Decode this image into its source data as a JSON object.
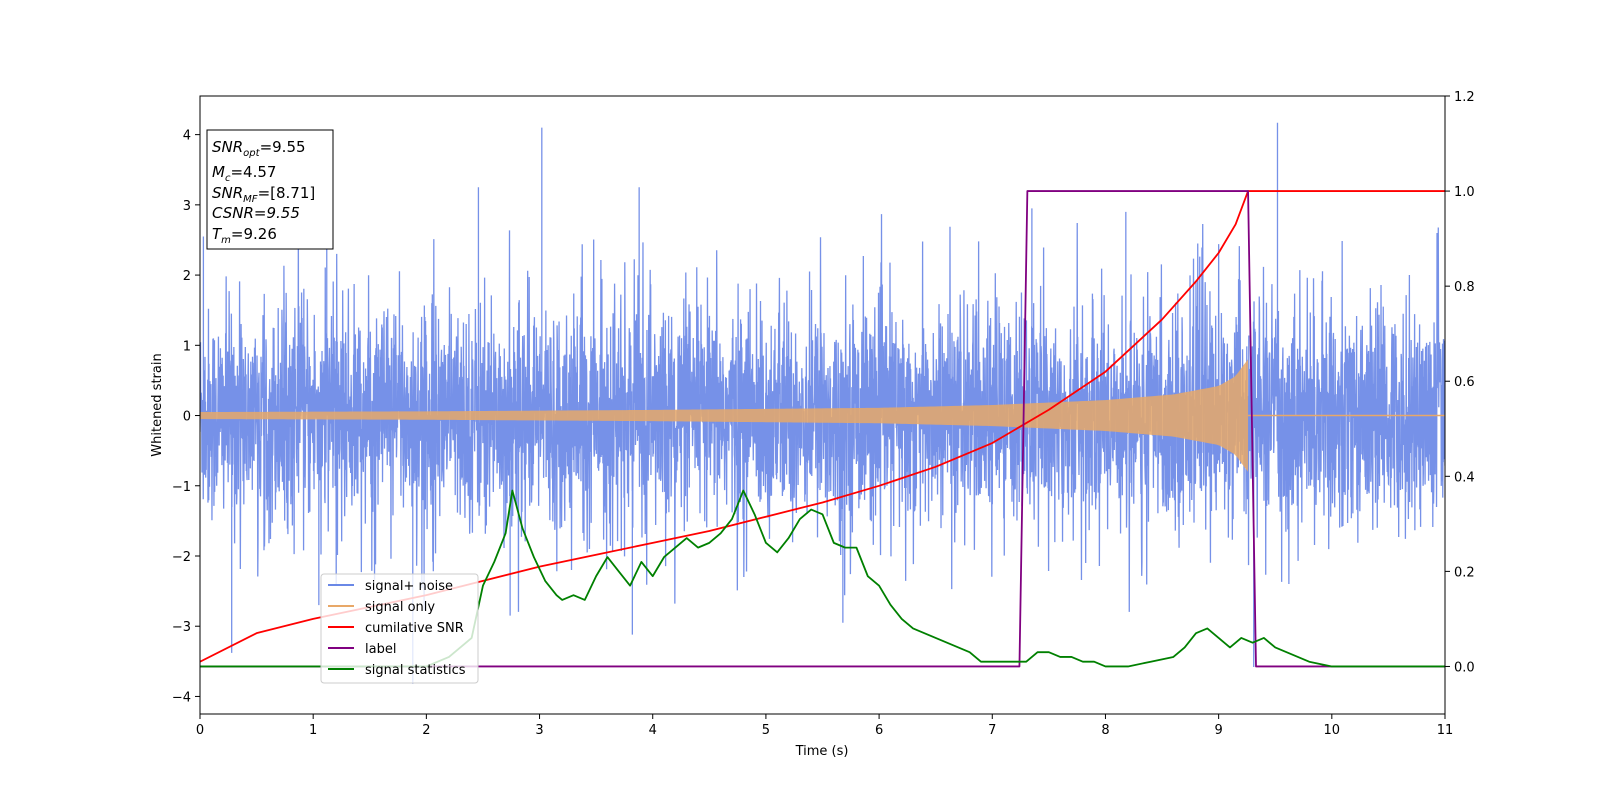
{
  "chart_data": {
    "type": "line",
    "xlabel": "Time (s)",
    "ylabel": "Whitened strain",
    "xlim": [
      0,
      11
    ],
    "ylim": [
      -4.25,
      4.55
    ],
    "y2lim": [
      -0.1,
      1.2
    ],
    "x_ticks": [
      0,
      1,
      2,
      3,
      4,
      5,
      6,
      7,
      8,
      9,
      10,
      11
    ],
    "y_ticks": [
      -4,
      -3,
      -2,
      -1,
      0,
      1,
      2,
      3,
      4
    ],
    "y2_ticks": [
      0.0,
      0.2,
      0.4,
      0.6,
      0.8,
      1.0,
      1.2
    ],
    "y2_tick_labels": [
      "0.0",
      "0.2",
      "0.4",
      "0.6",
      "0.8",
      "1.0",
      "1.2"
    ],
    "legend_position": "lower-left",
    "colors": {
      "noise": "#6a88e6",
      "signal": "#e8a868",
      "cum_snr": "#ff0000",
      "label": "#800080",
      "stats": "#008000"
    },
    "annotation": {
      "snr_opt": {
        "base": "SNR",
        "sub": "opt",
        "value": "=9.55"
      },
      "mc": {
        "base": "M",
        "sub": "c",
        "value": "=4.57"
      },
      "snr_mf": {
        "base": "SNR",
        "sub": "MF",
        "value": "=[8.71]"
      },
      "csnr": {
        "text": "CSNR=9.55"
      },
      "tm": {
        "base": "T",
        "sub": "m",
        "value": "=9.26"
      }
    },
    "signal_end": 9.26,
    "series": [
      {
        "name": "signal+ noise",
        "axis": "left",
        "description_values": {
          "std": 1.0,
          "spikes": [
            [
              0.28,
              -3.38
            ],
            [
              1.88,
              -3.82
            ],
            [
              3.02,
              4.1
            ],
            [
              3.82,
              -3.12
            ],
            [
              9.52,
              4.17
            ],
            [
              9.31,
              -3.58
            ],
            [
              2.46,
              3.25
            ],
            [
              3.88,
              3.25
            ],
            [
              7.35,
              2.95
            ],
            [
              8.18,
              2.9
            ],
            [
              1.12,
              2.95
            ],
            [
              0.03,
              2.55
            ],
            [
              1.05,
              -2.7
            ],
            [
              2.74,
              -2.85
            ],
            [
              5.68,
              -2.95
            ]
          ]
        }
      },
      {
        "name": "signal only",
        "axis": "left",
        "envelope": [
          [
            0,
            0.05
          ],
          [
            2,
            0.06
          ],
          [
            4,
            0.08
          ],
          [
            6,
            0.11
          ],
          [
            7,
            0.15
          ],
          [
            8,
            0.22
          ],
          [
            8.6,
            0.3
          ],
          [
            9.0,
            0.42
          ],
          [
            9.15,
            0.56
          ],
          [
            9.22,
            0.72
          ],
          [
            9.26,
            0.8
          ]
        ]
      },
      {
        "name": "cumilative SNR",
        "axis": "right",
        "x": [
          0,
          0.5,
          1,
          1.5,
          2,
          2.5,
          3,
          3.5,
          4,
          4.5,
          5,
          5.5,
          6,
          6.5,
          7,
          7.5,
          8,
          8.5,
          8.8,
          9.0,
          9.15,
          9.26,
          11
        ],
        "y": [
          0.01,
          0.07,
          0.1,
          0.125,
          0.15,
          0.18,
          0.21,
          0.235,
          0.26,
          0.285,
          0.315,
          0.345,
          0.38,
          0.42,
          0.47,
          0.54,
          0.62,
          0.73,
          0.81,
          0.87,
          0.93,
          1.0,
          1.0
        ]
      },
      {
        "name": "label",
        "axis": "right",
        "x": [
          0,
          7.24,
          7.31,
          9.26,
          9.33,
          11
        ],
        "y": [
          0,
          0,
          1.0,
          1.0,
          0,
          0
        ]
      },
      {
        "name": "signal statistics",
        "axis": "right",
        "x": [
          0,
          0.5,
          1,
          1.5,
          2,
          2.2,
          2.4,
          2.5,
          2.6,
          2.7,
          2.76,
          2.85,
          2.95,
          3.05,
          3.15,
          3.2,
          3.3,
          3.4,
          3.5,
          3.6,
          3.7,
          3.8,
          3.9,
          4.0,
          4.1,
          4.2,
          4.3,
          4.4,
          4.5,
          4.6,
          4.7,
          4.8,
          4.9,
          5.0,
          5.1,
          5.2,
          5.3,
          5.4,
          5.5,
          5.6,
          5.7,
          5.8,
          5.9,
          6.0,
          6.1,
          6.2,
          6.3,
          6.4,
          6.5,
          6.6,
          6.7,
          6.8,
          6.9,
          7.0,
          7.1,
          7.2,
          7.3,
          7.4,
          7.5,
          7.6,
          7.7,
          7.8,
          7.9,
          8.0,
          8.2,
          8.4,
          8.6,
          8.7,
          8.8,
          8.9,
          9.0,
          9.1,
          9.2,
          9.3,
          9.4,
          9.5,
          9.6,
          9.7,
          9.8,
          10.0,
          10.5,
          11
        ],
        "y": [
          0.0,
          0.0,
          0.0,
          0.0,
          0.0,
          0.02,
          0.06,
          0.17,
          0.22,
          0.28,
          0.37,
          0.29,
          0.23,
          0.18,
          0.15,
          0.14,
          0.15,
          0.14,
          0.19,
          0.23,
          0.2,
          0.17,
          0.22,
          0.19,
          0.23,
          0.25,
          0.27,
          0.25,
          0.26,
          0.28,
          0.31,
          0.37,
          0.32,
          0.26,
          0.24,
          0.27,
          0.31,
          0.33,
          0.32,
          0.26,
          0.25,
          0.25,
          0.19,
          0.17,
          0.13,
          0.1,
          0.08,
          0.07,
          0.06,
          0.05,
          0.04,
          0.03,
          0.01,
          0.01,
          0.01,
          0.01,
          0.01,
          0.03,
          0.03,
          0.02,
          0.02,
          0.01,
          0.01,
          0.0,
          0.0,
          0.01,
          0.02,
          0.04,
          0.07,
          0.08,
          0.06,
          0.04,
          0.06,
          0.05,
          0.06,
          0.04,
          0.03,
          0.02,
          0.01,
          0.0,
          0.0,
          0.0
        ]
      }
    ]
  }
}
